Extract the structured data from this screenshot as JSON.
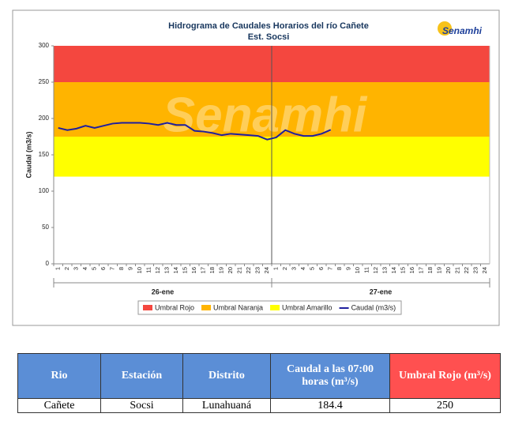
{
  "chart_data": {
    "type": "line",
    "title": "Hidrograma  de Caudales Horarios  del río Cañete",
    "subtitle": "Est. Socsi",
    "logo": "Senamhi",
    "ylabel": "Caudal (m3/s)",
    "ylim": [
      0,
      300
    ],
    "yticks": [
      0,
      50,
      100,
      150,
      200,
      250,
      300
    ],
    "categories": [
      "1",
      "2",
      "3",
      "4",
      "5",
      "6",
      "7",
      "8",
      "9",
      "10",
      "11",
      "12",
      "13",
      "14",
      "15",
      "16",
      "17",
      "18",
      "19",
      "20",
      "21",
      "22",
      "23",
      "24",
      "1",
      "2",
      "3",
      "4",
      "5",
      "6",
      "7",
      "8",
      "9",
      "10",
      "11",
      "12",
      "13",
      "14",
      "15",
      "16",
      "17",
      "18",
      "19",
      "20",
      "21",
      "22",
      "23",
      "24"
    ],
    "groups": [
      "26-ene",
      "27-ene"
    ],
    "bands": [
      {
        "name": "Umbral Rojo",
        "color": "#f4473f",
        "from": 250,
        "to": 300
      },
      {
        "name": "Umbral Naranja",
        "color": "#ffb400",
        "from": 175,
        "to": 250
      },
      {
        "name": "Umbral Amarillo",
        "color": "#ffff00",
        "from": 120,
        "to": 175
      }
    ],
    "series": [
      {
        "name": "Caudal (m3/s)",
        "color": "#1f1f9e",
        "values": [
          187,
          184,
          186,
          190,
          187,
          190,
          193,
          194,
          194,
          194,
          193,
          191,
          194,
          191,
          191,
          183,
          182,
          180,
          177,
          179,
          178,
          177,
          176,
          171,
          174,
          184,
          179,
          176,
          176,
          179,
          184.4,
          null,
          null,
          null,
          null,
          null,
          null,
          null,
          null,
          null,
          null,
          null,
          null,
          null,
          null,
          null,
          null,
          null
        ]
      }
    ]
  },
  "table": {
    "header": [
      "Rio",
      "Estación",
      "Distrito",
      "Caudal a las 07:00 horas (m³/s)",
      "Umbral Rojo (m³/s)"
    ],
    "rows": [
      [
        "Cañete",
        "Socsi",
        "Lunahuaná",
        "184.4",
        "250"
      ]
    ]
  }
}
